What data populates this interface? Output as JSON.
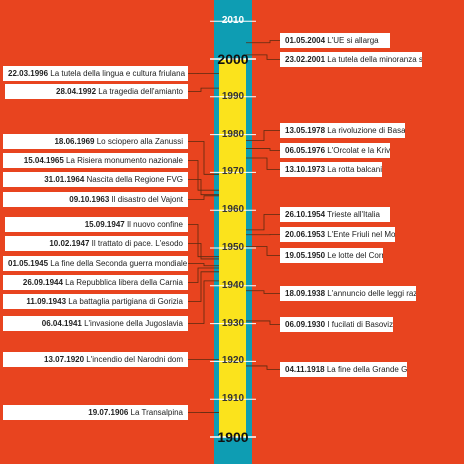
{
  "colors": {
    "background": "#e8441f",
    "axis_outer": "#0e9db3",
    "axis_inner": "#fbe31c",
    "connector": "#5a2a10"
  },
  "timeline": {
    "year_min": 1900,
    "year_max": 2010,
    "years": [
      {
        "label": "2010",
        "year": 2010,
        "style": "top"
      },
      {
        "label": "2000",
        "year": 2000,
        "style": "big"
      },
      {
        "label": "1990",
        "year": 1990,
        "style": "small"
      },
      {
        "label": "1980",
        "year": 1980,
        "style": "small"
      },
      {
        "label": "1970",
        "year": 1970,
        "style": "small"
      },
      {
        "label": "1960",
        "year": 1960,
        "style": "small"
      },
      {
        "label": "1950",
        "year": 1950,
        "style": "medium"
      },
      {
        "label": "1940",
        "year": 1940,
        "style": "small"
      },
      {
        "label": "1930",
        "year": 1930,
        "style": "small"
      },
      {
        "label": "1920",
        "year": 1920,
        "style": "small"
      },
      {
        "label": "1910",
        "year": 1910,
        "style": "small"
      },
      {
        "label": "1900",
        "year": 1900,
        "style": "big"
      }
    ],
    "events_left": [
      {
        "date": "22.03.1996",
        "text": "La tutela della lingua e cultura friulana",
        "year": 1996.2
      },
      {
        "date": "28.04.1992",
        "text": "La tragedia dell'amianto",
        "year": 1992.3
      },
      {
        "date": "18.06.1969",
        "text": "Lo sciopero alla Zanussi",
        "year": 1969.5
      },
      {
        "date": "15.04.1965",
        "text": "La Risiera monumento nazionale",
        "year": 1965.3
      },
      {
        "date": "31.01.1964",
        "text": "Nascita della Regione FVG",
        "year": 1964.1
      },
      {
        "date": "09.10.1963",
        "text": "Il disastro del Vajont",
        "year": 1963.8
      },
      {
        "date": "15.09.1947",
        "text": "Il nuovo confine",
        "year": 1947.7
      },
      {
        "date": "10.02.1947",
        "text": "Il trattato di pace. L'esodo",
        "year": 1947.1
      },
      {
        "date": "01.05.1945",
        "text": "La fine della Seconda guerra mondiale",
        "year": 1945.3
      },
      {
        "date": "26.09.1944",
        "text": "La Repubblica libera della Carnia",
        "year": 1944.7
      },
      {
        "date": "11.09.1943",
        "text": "La battaglia partigiana di Gorizia",
        "year": 1943.7
      },
      {
        "date": "06.04.1941",
        "text": "L'invasione della Jugoslavia",
        "year": 1941.3
      },
      {
        "date": "13.07.1920",
        "text": "L'incendio del Narodni dom",
        "year": 1920.5
      },
      {
        "date": "19.07.1906",
        "text": "La Transalpina",
        "year": 1906.5
      }
    ],
    "events_right": [
      {
        "date": "01.05.2004",
        "text": "L'UE si allarga",
        "year": 2004.3
      },
      {
        "date": "23.02.2001",
        "text": "La tutela della minoranza slovena",
        "year": 2001.1
      },
      {
        "date": "13.05.1978",
        "text": "La rivoluzione di Basaglia",
        "year": 1978.4
      },
      {
        "date": "06.05.1976",
        "text": "L'Orcolat e la Krivaja",
        "year": 1976.3
      },
      {
        "date": "13.10.1973",
        "text": "La rotta balcanica",
        "year": 1973.8
      },
      {
        "date": "26.10.1954",
        "text": "Trieste all'Italia",
        "year": 1954.8
      },
      {
        "date": "20.06.1953",
        "text": "L'Ente Friuli nel Mondo",
        "year": 1953.5
      },
      {
        "date": "19.05.1950",
        "text": "Le lotte del Cormôr",
        "year": 1950.4
      },
      {
        "date": "18.09.1938",
        "text": "L'annuncio delle leggi razziste",
        "year": 1938.7
      },
      {
        "date": "06.09.1930",
        "text": "I fucilati di Basovizza",
        "year": 1930.7
      },
      {
        "date": "04.11.1918",
        "text": "La fine della Grande Guerra",
        "year": 1918.8
      }
    ]
  }
}
